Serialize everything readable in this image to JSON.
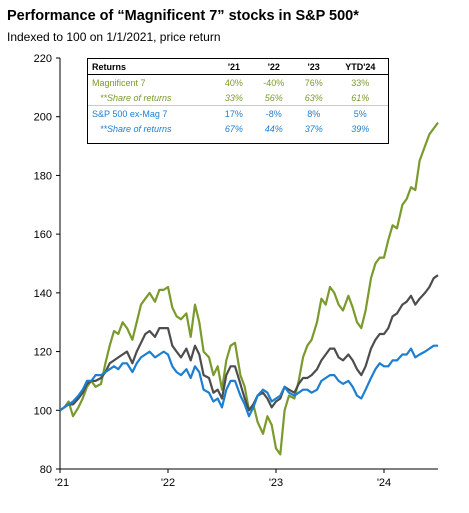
{
  "title": "Performance of “Magnificent 7” stocks in S&P 500*",
  "subtitle": "Indexed to 100 on 1/1/2021, price return",
  "colors": {
    "mag7": "#7a9a2e",
    "spx_ex": "#1c7fd1",
    "spx": "#4d4d4d",
    "axis": "#000000",
    "grid": "#d9d9d9"
  },
  "table": {
    "headers": [
      "Returns",
      "'21",
      "'22",
      "'23",
      "YTD'24"
    ],
    "rows": [
      {
        "label": "Magnificent 7",
        "values": [
          "40%",
          "-40%",
          "76%",
          "33%"
        ],
        "color": "green",
        "italic": false
      },
      {
        "label": "**Share of returns",
        "values": [
          "33%",
          "56%",
          "63%",
          "61%"
        ],
        "color": "green",
        "italic": true
      },
      {
        "label": "S&P 500 ex-Mag 7",
        "values": [
          "17%",
          "-8%",
          "8%",
          "5%"
        ],
        "color": "blue",
        "italic": false
      },
      {
        "label": "**Share of returns",
        "values": [
          "67%",
          "44%",
          "37%",
          "39%"
        ],
        "color": "blue",
        "italic": true
      }
    ]
  },
  "chart_data": {
    "type": "line",
    "x_tick_labels": [
      "'21",
      "'22",
      "'23",
      "'24"
    ],
    "x_ticks": [
      2021,
      2022,
      2023,
      2024
    ],
    "xlim": [
      2021,
      2024.5
    ],
    "y_ticks": [
      80,
      100,
      120,
      140,
      160,
      180,
      200,
      220
    ],
    "ylim": [
      80,
      220
    ],
    "grid": false,
    "series": [
      {
        "id": "mag7",
        "color": "#7a9a2e",
        "x": [
          2021.0,
          2021.04,
          2021.08,
          2021.12,
          2021.17,
          2021.21,
          2021.25,
          2021.29,
          2021.33,
          2021.38,
          2021.42,
          2021.46,
          2021.5,
          2021.54,
          2021.58,
          2021.62,
          2021.67,
          2021.71,
          2021.75,
          2021.79,
          2021.83,
          2021.88,
          2021.92,
          2021.96,
          2022.0,
          2022.04,
          2022.08,
          2022.12,
          2022.17,
          2022.21,
          2022.25,
          2022.29,
          2022.33,
          2022.38,
          2022.42,
          2022.46,
          2022.5,
          2022.54,
          2022.58,
          2022.62,
          2022.67,
          2022.71,
          2022.75,
          2022.79,
          2022.83,
          2022.88,
          2022.92,
          2022.96,
          2023.0,
          2023.04,
          2023.08,
          2023.12,
          2023.17,
          2023.21,
          2023.25,
          2023.29,
          2023.33,
          2023.38,
          2023.42,
          2023.46,
          2023.5,
          2023.54,
          2023.58,
          2023.62,
          2023.67,
          2023.71,
          2023.75,
          2023.79,
          2023.83,
          2023.88,
          2023.92,
          2023.96,
          2024.0,
          2024.04,
          2024.08,
          2024.12,
          2024.17,
          2024.21,
          2024.25,
          2024.29,
          2024.33,
          2024.38,
          2024.42,
          2024.46,
          2024.5
        ],
        "y": [
          100,
          101,
          103,
          98,
          101,
          104,
          108,
          110,
          108,
          109,
          116,
          122,
          127,
          126,
          130,
          128,
          124,
          130,
          136,
          138,
          140,
          137,
          141,
          141,
          142,
          135,
          132,
          131,
          133,
          125,
          136,
          130,
          120,
          118,
          112,
          115,
          107,
          117,
          122,
          123,
          112,
          108,
          100,
          102,
          96,
          92,
          98,
          95,
          87,
          85,
          100,
          105,
          104,
          110,
          118,
          122,
          124,
          130,
          138,
          136,
          142,
          140,
          136,
          134,
          139,
          135,
          130,
          128,
          134,
          145,
          150,
          152,
          152,
          158,
          163,
          162,
          170,
          172,
          176,
          175,
          185,
          190,
          194,
          196,
          198
        ]
      },
      {
        "id": "spx",
        "color": "#4d4d4d",
        "x": [
          2021.0,
          2021.04,
          2021.08,
          2021.12,
          2021.17,
          2021.21,
          2021.25,
          2021.29,
          2021.33,
          2021.38,
          2021.42,
          2021.46,
          2021.5,
          2021.54,
          2021.58,
          2021.62,
          2021.67,
          2021.71,
          2021.75,
          2021.79,
          2021.83,
          2021.88,
          2021.92,
          2021.96,
          2022.0,
          2022.04,
          2022.08,
          2022.12,
          2022.17,
          2022.21,
          2022.25,
          2022.29,
          2022.33,
          2022.38,
          2022.42,
          2022.46,
          2022.5,
          2022.54,
          2022.58,
          2022.62,
          2022.67,
          2022.71,
          2022.75,
          2022.79,
          2022.83,
          2022.88,
          2022.92,
          2022.96,
          2023.0,
          2023.04,
          2023.08,
          2023.12,
          2023.17,
          2023.21,
          2023.25,
          2023.29,
          2023.33,
          2023.38,
          2023.42,
          2023.46,
          2023.5,
          2023.54,
          2023.58,
          2023.62,
          2023.67,
          2023.71,
          2023.75,
          2023.79,
          2023.83,
          2023.88,
          2023.92,
          2023.96,
          2024.0,
          2024.04,
          2024.08,
          2024.12,
          2024.17,
          2024.21,
          2024.25,
          2024.29,
          2024.33,
          2024.38,
          2024.42,
          2024.46,
          2024.5
        ],
        "y": [
          100,
          101,
          102,
          102,
          104,
          106,
          109,
          110,
          110,
          111,
          113,
          116,
          117,
          118,
          119,
          120,
          116,
          120,
          123,
          126,
          127,
          125,
          128,
          128,
          128,
          122,
          120,
          118,
          121,
          117,
          122,
          119,
          112,
          111,
          106,
          107,
          104,
          112,
          115,
          115,
          109,
          104,
          100,
          102,
          105,
          106,
          104,
          101,
          103,
          104,
          108,
          107,
          106,
          109,
          111,
          111,
          112,
          114,
          117,
          119,
          121,
          121,
          118,
          117,
          119,
          117,
          114,
          112,
          115,
          121,
          124,
          126,
          126,
          128,
          132,
          133,
          136,
          137,
          139,
          136,
          138,
          140,
          142,
          145,
          146
        ]
      },
      {
        "id": "spx_ex",
        "color": "#1c7fd1",
        "x": [
          2021.0,
          2021.04,
          2021.08,
          2021.12,
          2021.17,
          2021.21,
          2021.25,
          2021.29,
          2021.33,
          2021.38,
          2021.42,
          2021.46,
          2021.5,
          2021.54,
          2021.58,
          2021.62,
          2021.67,
          2021.71,
          2021.75,
          2021.79,
          2021.83,
          2021.88,
          2021.92,
          2021.96,
          2022.0,
          2022.04,
          2022.08,
          2022.12,
          2022.17,
          2022.21,
          2022.25,
          2022.29,
          2022.33,
          2022.38,
          2022.42,
          2022.46,
          2022.5,
          2022.54,
          2022.58,
          2022.62,
          2022.67,
          2022.71,
          2022.75,
          2022.79,
          2022.83,
          2022.88,
          2022.92,
          2022.96,
          2023.0,
          2023.04,
          2023.08,
          2023.12,
          2023.17,
          2023.21,
          2023.25,
          2023.29,
          2023.33,
          2023.38,
          2023.42,
          2023.46,
          2023.5,
          2023.54,
          2023.58,
          2023.62,
          2023.67,
          2023.71,
          2023.75,
          2023.79,
          2023.83,
          2023.88,
          2023.92,
          2023.96,
          2024.0,
          2024.04,
          2024.08,
          2024.12,
          2024.17,
          2024.21,
          2024.25,
          2024.29,
          2024.33,
          2024.38,
          2024.42,
          2024.46,
          2024.5
        ],
        "y": [
          100,
          101,
          102,
          103,
          105,
          107,
          110,
          110,
          112,
          112,
          113,
          114,
          115,
          114,
          116,
          116,
          113,
          116,
          118,
          119,
          120,
          118,
          119,
          120,
          119,
          115,
          113,
          112,
          114,
          111,
          115,
          113,
          107,
          106,
          103,
          104,
          101,
          107,
          110,
          110,
          105,
          102,
          98,
          101,
          105,
          107,
          106,
          103,
          104,
          105,
          108,
          106,
          105,
          106,
          107,
          107,
          106,
          107,
          110,
          111,
          112,
          112,
          110,
          109,
          110,
          108,
          105,
          104,
          107,
          111,
          114,
          116,
          115,
          115,
          117,
          117,
          119,
          119,
          121,
          118,
          119,
          120,
          121,
          122,
          122
        ]
      }
    ]
  }
}
